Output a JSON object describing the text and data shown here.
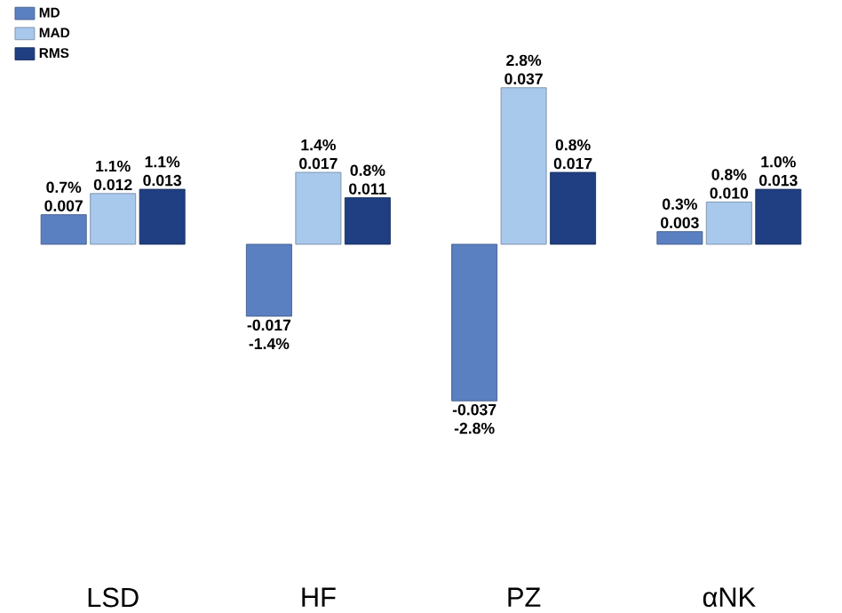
{
  "chart_data": {
    "type": "bar",
    "categories": [
      "LSD",
      "HF",
      "PZ",
      "αNK"
    ],
    "series": [
      {
        "name": "MD",
        "color": "#5b80c2",
        "values": [
          0.007,
          -0.017,
          -0.037,
          0.003
        ],
        "value_labels": [
          "0.7% 0.007",
          "-0.017 -1.4%",
          "-0.037 -2.8%",
          "0.3% 0.003"
        ]
      },
      {
        "name": "MAD",
        "color": "#a8c8ec",
        "values": [
          0.012,
          0.017,
          0.037,
          0.01
        ],
        "value_labels": [
          "1.1% 0.012",
          "1.4% 0.017",
          "2.8% 0.037",
          "0.8% 0.010"
        ]
      },
      {
        "name": "RMS",
        "color": "#1f3f82",
        "values": [
          0.013,
          0.011,
          0.017,
          0.013
        ],
        "value_labels": [
          "1.1% 0.013",
          "0.8% 0.011",
          "0.8% 0.017",
          "1.0% 0.013"
        ]
      }
    ],
    "legend": "top left"
  }
}
